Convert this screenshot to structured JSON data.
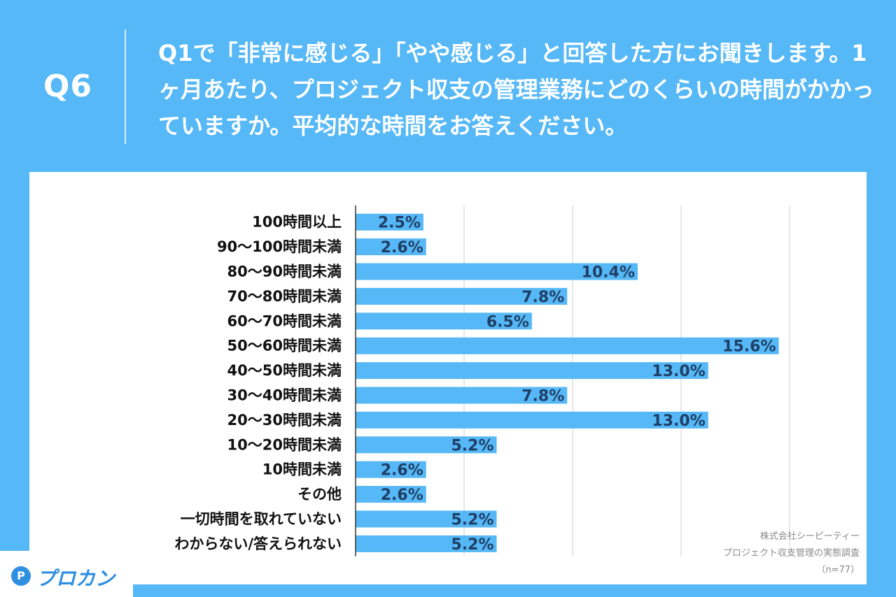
{
  "header": {
    "qnum": "Q6",
    "question": "Q1で「非常に感じる」「やや感じる」と回答した方にお聞きします。1ヶ月あたり、プロジェクト収支の管理業務にどのくらいの時間がかかっていますか。平均的な時間をお答えください。"
  },
  "footer": {
    "company": "株式会社シーピーティー",
    "survey": "プロジェクト収支管理の実態調査",
    "n": "（n=77）"
  },
  "logo": {
    "mark": "P",
    "text": "プロカン"
  },
  "colors": {
    "background": "#56b8f6",
    "bar": "#56b8f6",
    "bar_label": "#1f3f66"
  },
  "chart_data": {
    "type": "bar",
    "orientation": "horizontal",
    "categories": [
      "100時間以上",
      "90〜100時間未満",
      "80〜90時間未満",
      "70〜80時間未満",
      "60〜70時間未満",
      "50〜60時間未満",
      "40〜50時間未満",
      "30〜40時間未満",
      "20〜30時間未満",
      "10〜20時間未満",
      "10時間未満",
      "その他",
      "一切時間を取れていない",
      "わからない/答えられない"
    ],
    "values": [
      2.5,
      2.6,
      10.4,
      7.8,
      6.5,
      15.6,
      13.0,
      7.8,
      13.0,
      5.2,
      2.6,
      2.6,
      5.2,
      5.2
    ],
    "value_labels": [
      "2.5%",
      "2.6%",
      "10.4%",
      "7.8%",
      "6.5%",
      "15.6%",
      "13.0%",
      "7.8%",
      "13.0%",
      "5.2%",
      "2.6%",
      "2.6%",
      "5.2%",
      "5.2%"
    ],
    "xlim": [
      0,
      16
    ],
    "grid": true,
    "legend": "none"
  }
}
